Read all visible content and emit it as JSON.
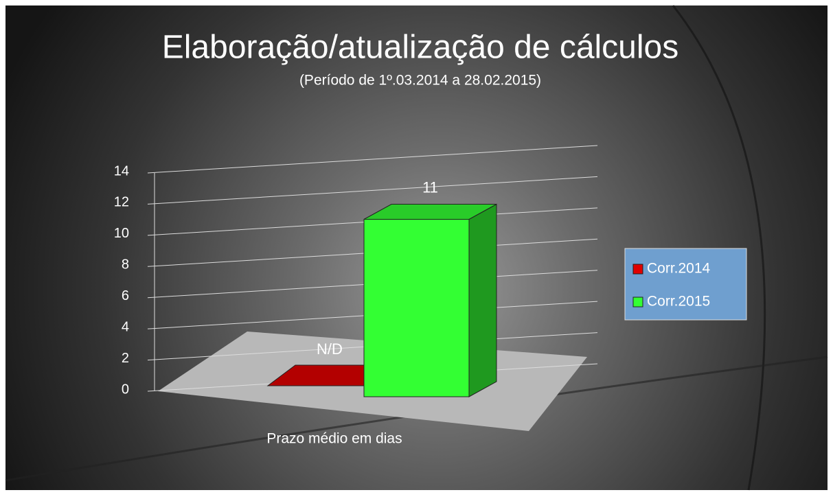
{
  "chart_data": {
    "type": "bar3d",
    "title": "Elaboração/atualização de cálculos",
    "subtitle": "(Período de 1º.03.2014  a  28.02.2015)",
    "categories": [
      "Prazo médio em dias"
    ],
    "series": [
      {
        "name": "Corr.2014",
        "color": "#e00000",
        "values": [
          0
        ],
        "value_labels": [
          "N/D"
        ]
      },
      {
        "name": "Corr.2015",
        "color": "#33ff33",
        "values": [
          11
        ]
      }
    ],
    "ylim": [
      0,
      14
    ],
    "yticks": [
      0,
      2,
      4,
      6,
      8,
      10,
      12,
      14
    ],
    "grid": true,
    "legend": "right"
  }
}
